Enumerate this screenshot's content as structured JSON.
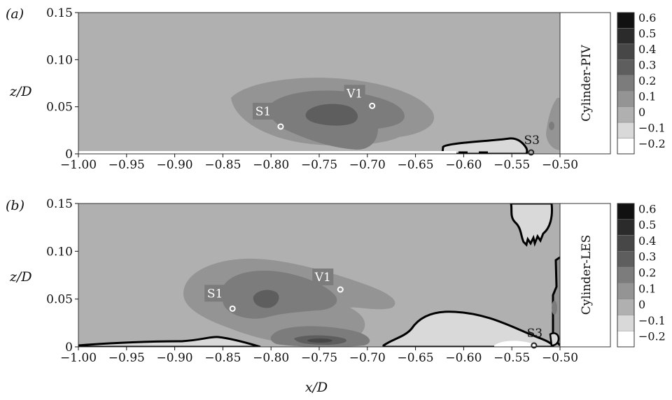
{
  "chart_data": [
    {
      "type": "contour",
      "panel_label": "(a)",
      "ylabel": "z/D",
      "xlabel": "",
      "xlim": [
        -1.0,
        -0.5
      ],
      "ylim": [
        0,
        0.15
      ],
      "x_ticks": [
        "−1.00",
        "−0.95",
        "−0.90",
        "−0.85",
        "−0.80",
        "−0.75",
        "−0.70",
        "−0.65",
        "−0.60",
        "−0.55",
        "−0.50"
      ],
      "y_ticks": [
        "0",
        "0.05",
        "0.10",
        "0.15"
      ],
      "side_label": "Cylinder-PIV",
      "colorbar": {
        "levels": [
          0.6,
          0.5,
          0.4,
          0.3,
          0.2,
          0.1,
          0,
          -0.1,
          -0.2
        ],
        "labels": [
          "0.6",
          "0.5",
          "0.4",
          "0.3",
          "0.2",
          "0.1",
          "0",
          "−0.1",
          "−0.2"
        ],
        "colors": [
          "#111111",
          "#2b2b2b",
          "#474747",
          "#5e5e5e",
          "#7c7c7c",
          "#949494",
          "#b0b0b0",
          "#d9d9d9",
          "#ffffff"
        ]
      },
      "points": [
        {
          "name": "S1",
          "x": -0.79,
          "y": 0.029
        },
        {
          "name": "V1",
          "x": -0.695,
          "y": 0.051
        },
        {
          "name": "S3",
          "x": -0.53,
          "y": 0.0
        }
      ]
    },
    {
      "type": "contour",
      "panel_label": "(b)",
      "ylabel": "z/D",
      "xlabel": "x/D",
      "xlim": [
        -1.0,
        -0.5
      ],
      "ylim": [
        0,
        0.15
      ],
      "x_ticks": [
        "−1.00",
        "−0.95",
        "−0.90",
        "−0.85",
        "−0.80",
        "−0.75",
        "−0.70",
        "−0.65",
        "−0.60",
        "−0.55",
        "−0.50"
      ],
      "y_ticks": [
        "0",
        "0.05",
        "0.10",
        "0.15"
      ],
      "side_label": "Cylinder-LES",
      "colorbar": {
        "levels": [
          0.6,
          0.5,
          0.4,
          0.3,
          0.2,
          0.1,
          0,
          -0.1,
          -0.2
        ],
        "labels": [
          "0.6",
          "0.5",
          "0.4",
          "0.3",
          "0.2",
          "0.1",
          "0",
          "−0.1",
          "−0.2"
        ],
        "colors": [
          "#111111",
          "#2b2b2b",
          "#474747",
          "#5e5e5e",
          "#7c7c7c",
          "#949494",
          "#b0b0b0",
          "#d9d9d9",
          "#ffffff"
        ]
      },
      "points": [
        {
          "name": "S1",
          "x": -0.84,
          "y": 0.04
        },
        {
          "name": "V1",
          "x": -0.728,
          "y": 0.06
        },
        {
          "name": "S3",
          "x": -0.527,
          "y": 0.0
        }
      ]
    }
  ]
}
